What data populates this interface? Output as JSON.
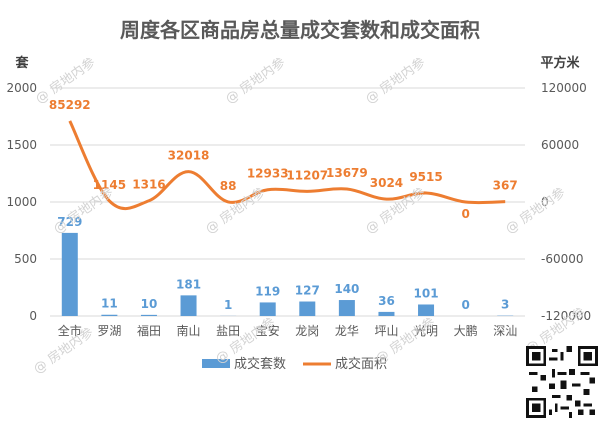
{
  "chart_data": {
    "type": "bar",
    "title": "周度各区商品房总量成交套数和成交面积",
    "ylabel_left": "套",
    "ylabel_right": "平方米",
    "categories": [
      "全市",
      "罗湖",
      "福田",
      "南山",
      "盐田",
      "宝安",
      "龙岗",
      "龙华",
      "坪山",
      "光明",
      "大鹏",
      "深汕"
    ],
    "series": [
      {
        "name": "成交套数",
        "type": "bar",
        "axis": "left",
        "values": [
          729,
          11,
          10,
          181,
          1,
          119,
          127,
          140,
          36,
          101,
          0,
          3
        ]
      },
      {
        "name": "成交面积",
        "type": "line",
        "axis": "right",
        "values": [
          85292,
          1145,
          1316,
          32018,
          88,
          12933,
          11207,
          13679,
          3024,
          9515,
          0,
          367
        ]
      }
    ],
    "y_left": {
      "min": 0,
      "max": 2000,
      "ticks": [
        0,
        500,
        1000,
        1500,
        2000
      ]
    },
    "y_right": {
      "min": -120000,
      "max": 120000,
      "ticks": [
        -120000,
        -60000,
        0,
        60000,
        120000
      ]
    },
    "legend_position": "bottom",
    "grid": true,
    "colors": {
      "bar": "#5b9bd5",
      "line": "#ed7d31",
      "bar_label": "#5b9bd5",
      "line_label": "#ed7d31",
      "text": "#595959",
      "grid": "#d9d9d9"
    }
  },
  "watermark_text": "@ 房地内参"
}
